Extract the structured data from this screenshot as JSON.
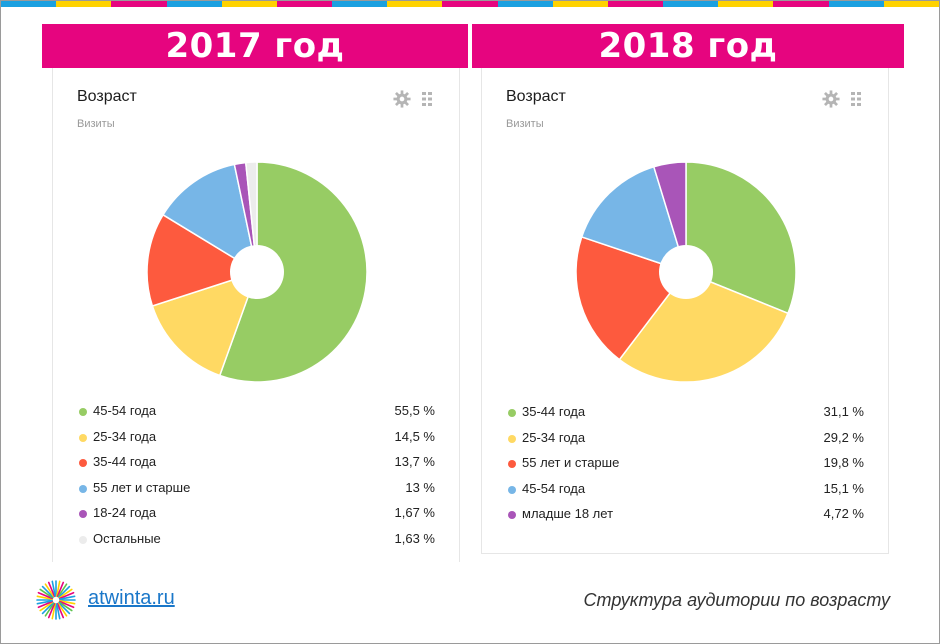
{
  "header": {
    "stripe_colors": [
      "#1ca0e0",
      "#ffd200",
      "#e6057f",
      "#1ca0e0",
      "#ffd200",
      "#e6057f",
      "#1ca0e0",
      "#ffd200",
      "#e6057f",
      "#1ca0e0",
      "#ffd200",
      "#e6057f",
      "#1ca0e0",
      "#ffd200",
      "#e6057f",
      "#1ca0e0",
      "#ffd200"
    ],
    "banner_color": "#e6057f",
    "left_year": "2017 год",
    "right_year": "2018 год"
  },
  "panels": [
    {
      "title": "Возраст",
      "subtitle": "Визиты",
      "settings_icon": "gear-icon",
      "drag_icon": "drag-handle-icon"
    },
    {
      "title": "Возраст",
      "subtitle": "Визиты",
      "settings_icon": "gear-icon",
      "drag_icon": "drag-handle-icon"
    }
  ],
  "chart_data": [
    {
      "type": "pie",
      "donut": true,
      "start_angle_deg": 0,
      "slices": [
        {
          "label": "45-54 года",
          "value": 55.5,
          "display": "55,5 %",
          "color": "#97cc64"
        },
        {
          "label": "25-34 года",
          "value": 14.5,
          "display": "14,5 %",
          "color": "#ffd963"
        },
        {
          "label": "35-44 года",
          "value": 13.7,
          "display": "13,7 %",
          "color": "#fd5a3e"
        },
        {
          "label": "55 лет и старше",
          "value": 13,
          "display": "13 %",
          "color": "#77b6e7"
        },
        {
          "label": "18-24 года",
          "value": 1.67,
          "display": "1,67 %",
          "color": "#a955b8"
        },
        {
          "label": "Остальные",
          "value": 1.63,
          "display": "1,63 %",
          "color": "#ececec"
        }
      ],
      "legend_position": "bottom"
    },
    {
      "type": "pie",
      "donut": true,
      "start_angle_deg": 0,
      "slices": [
        {
          "label": "35-44 года",
          "value": 31.1,
          "display": "31,1 %",
          "color": "#97cc64"
        },
        {
          "label": "25-34 года",
          "value": 29.2,
          "display": "29,2 %",
          "color": "#ffd963"
        },
        {
          "label": "55 лет и старше",
          "value": 19.8,
          "display": "19,8 %",
          "color": "#fd5a3e"
        },
        {
          "label": "45-54 года",
          "value": 15.1,
          "display": "15,1 %",
          "color": "#77b6e7"
        },
        {
          "label": "младше 18 лет",
          "value": 4.72,
          "display": "4,72 %",
          "color": "#a955b8"
        }
      ],
      "legend_position": "bottom"
    }
  ],
  "footer": {
    "brand": "atwinta.ru",
    "brand_color": "#1a77c9",
    "logo_icon": "starburst-logo-icon",
    "caption": "Структура аудитории по возрасту"
  }
}
